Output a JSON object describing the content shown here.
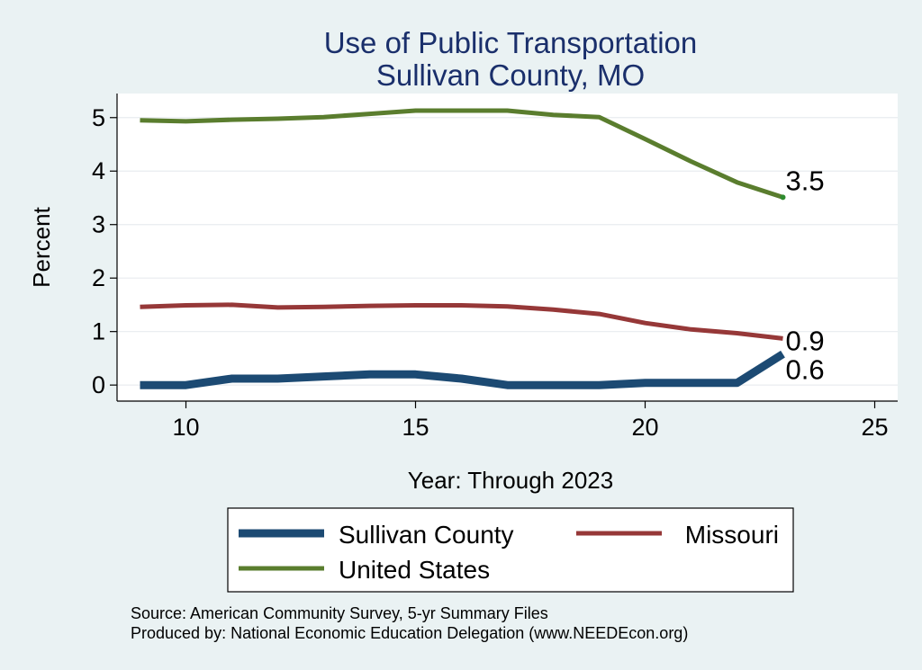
{
  "chart_data": {
    "type": "line",
    "title": [
      "Use of Public Transportation",
      "Sullivan County, MO"
    ],
    "xlabel": "Year: Through 2023",
    "ylabel": "Percent",
    "xlim": [
      8.5,
      25.5
    ],
    "ylim": [
      -0.3,
      5.45
    ],
    "xticks": [
      10,
      15,
      20,
      25
    ],
    "yticks": [
      0,
      1,
      2,
      3,
      4,
      5
    ],
    "grid": true,
    "series": [
      {
        "name": "United States",
        "color": "#5a7d2e",
        "x": [
          9,
          10,
          11,
          12,
          13,
          14,
          15,
          16,
          17,
          18,
          19,
          20,
          21,
          22,
          23
        ],
        "values": [
          4.95,
          4.93,
          4.96,
          4.98,
          5.01,
          5.07,
          5.13,
          5.13,
          5.13,
          5.05,
          5.01,
          4.6,
          4.18,
          3.79,
          3.51
        ],
        "end_label": "3.5",
        "thickness": "medium"
      },
      {
        "name": "Missouri",
        "color": "#963838",
        "x": [
          9,
          10,
          11,
          12,
          13,
          14,
          15,
          16,
          17,
          18,
          19,
          20,
          21,
          22,
          23
        ],
        "values": [
          1.46,
          1.49,
          1.5,
          1.45,
          1.46,
          1.48,
          1.49,
          1.49,
          1.47,
          1.41,
          1.33,
          1.16,
          1.04,
          0.97,
          0.87
        ],
        "end_label": "0.9",
        "thickness": "medium"
      },
      {
        "name": "Sullivan County",
        "color": "#1c4a73",
        "x": [
          9,
          10,
          11,
          12,
          13,
          14,
          15,
          16,
          17,
          18,
          19,
          20,
          21,
          22,
          23
        ],
        "values": [
          0.0,
          0.0,
          0.12,
          0.12,
          0.16,
          0.2,
          0.2,
          0.12,
          0.0,
          0.0,
          0.0,
          0.04,
          0.04,
          0.04,
          0.58
        ],
        "end_label": "0.6",
        "thickness": "thick"
      }
    ],
    "legend": {
      "placement": "bottom",
      "order": [
        "Sullivan County",
        "Missouri",
        "United States"
      ]
    }
  },
  "source_lines": [
    "Source: American Community Survey, 5-yr Summary Files",
    "Produced by: National Economic Education Delegation (www.NEEDEcon.org)"
  ]
}
